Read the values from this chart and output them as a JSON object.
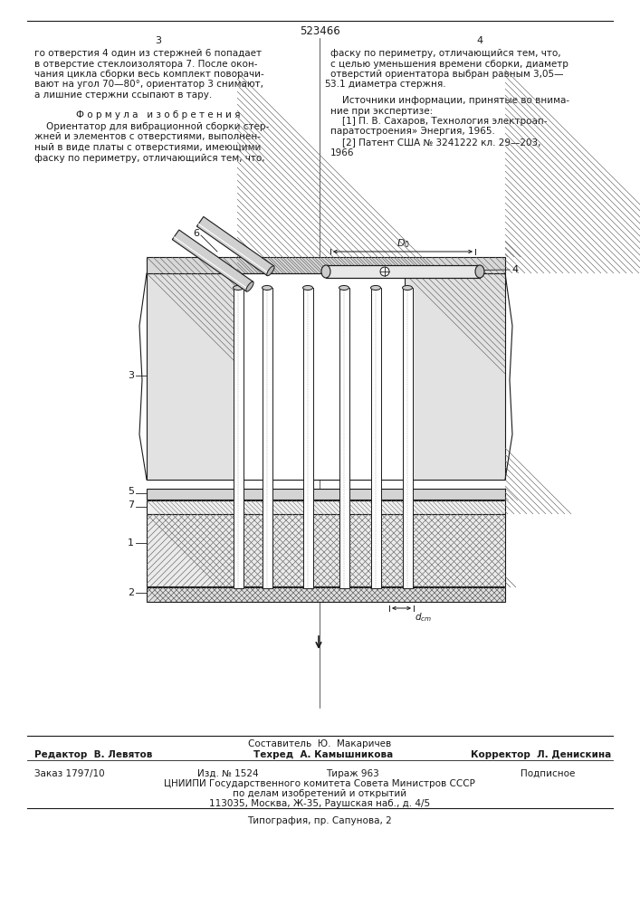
{
  "page_number": "523466",
  "col_left_num": "3",
  "col_right_num": "4",
  "text_col1_lines": [
    "го отверстия 4 один из стержней 6 попадает",
    "в отверстие стеклоизолятора 7. После окон-",
    "чания цикла сборки весь комплект поворачи-",
    "вают на угол 70—80°, ориентатор 3 снимают,",
    "а лишние стержни ссыпают в тару."
  ],
  "formula_title": "Ф о р м у л а   и з о б р е т е н и я",
  "formula_text_lines": [
    "    Ориентатор для вибрационной сборки стер-",
    "жней и элементов с отверстиями, выполнен-",
    "ный в виде платы с отверстиями, имеющими",
    "фаску по периметру, отличающийся тем, что,"
  ],
  "line_num_5": "5",
  "text_col2_lines": [
    "фаску по периметру, отличающийся тем, что,",
    "с целью уменьшения времени сборки, диаметр",
    "отверстий ориентатора выбран равным 3,05—",
    "3.1 диаметра стержня."
  ],
  "sources_header": "    Источники информации, принятые во внима-",
  "sources_lines": [
    "ние при экспертизе:",
    "    [1] П. В. Сахаров, Технология электроап-",
    "паратостроения» Энергия, 1965.",
    "    [2] Патент США № 3241222 кл. 29—203,",
    "1966"
  ],
  "footer_compiler": "Составитель  Ю.  Макаричев",
  "footer_editor": "Редактор  В. Левятов",
  "footer_techr": "Техред  А. Камышникова",
  "footer_corrector": "Корректор  Л. Денискина",
  "footer_order": "Заказ 1797/10",
  "footer_edition": "Изд. № 1524",
  "footer_copies": "Тираж 963",
  "footer_subscription": "Подписное",
  "footer_org": "ЦНИИПИ Государственного комитета Совета Министров СССР",
  "footer_dept": "по делам изобретений и открытий",
  "footer_addr": "113035, Москва, Ж-35, Раушская наб., д. 4/5",
  "footer_print": "Типография, пр. Сапунова, 2",
  "bg_color": "#ffffff",
  "line_color": "#1a1a1a"
}
